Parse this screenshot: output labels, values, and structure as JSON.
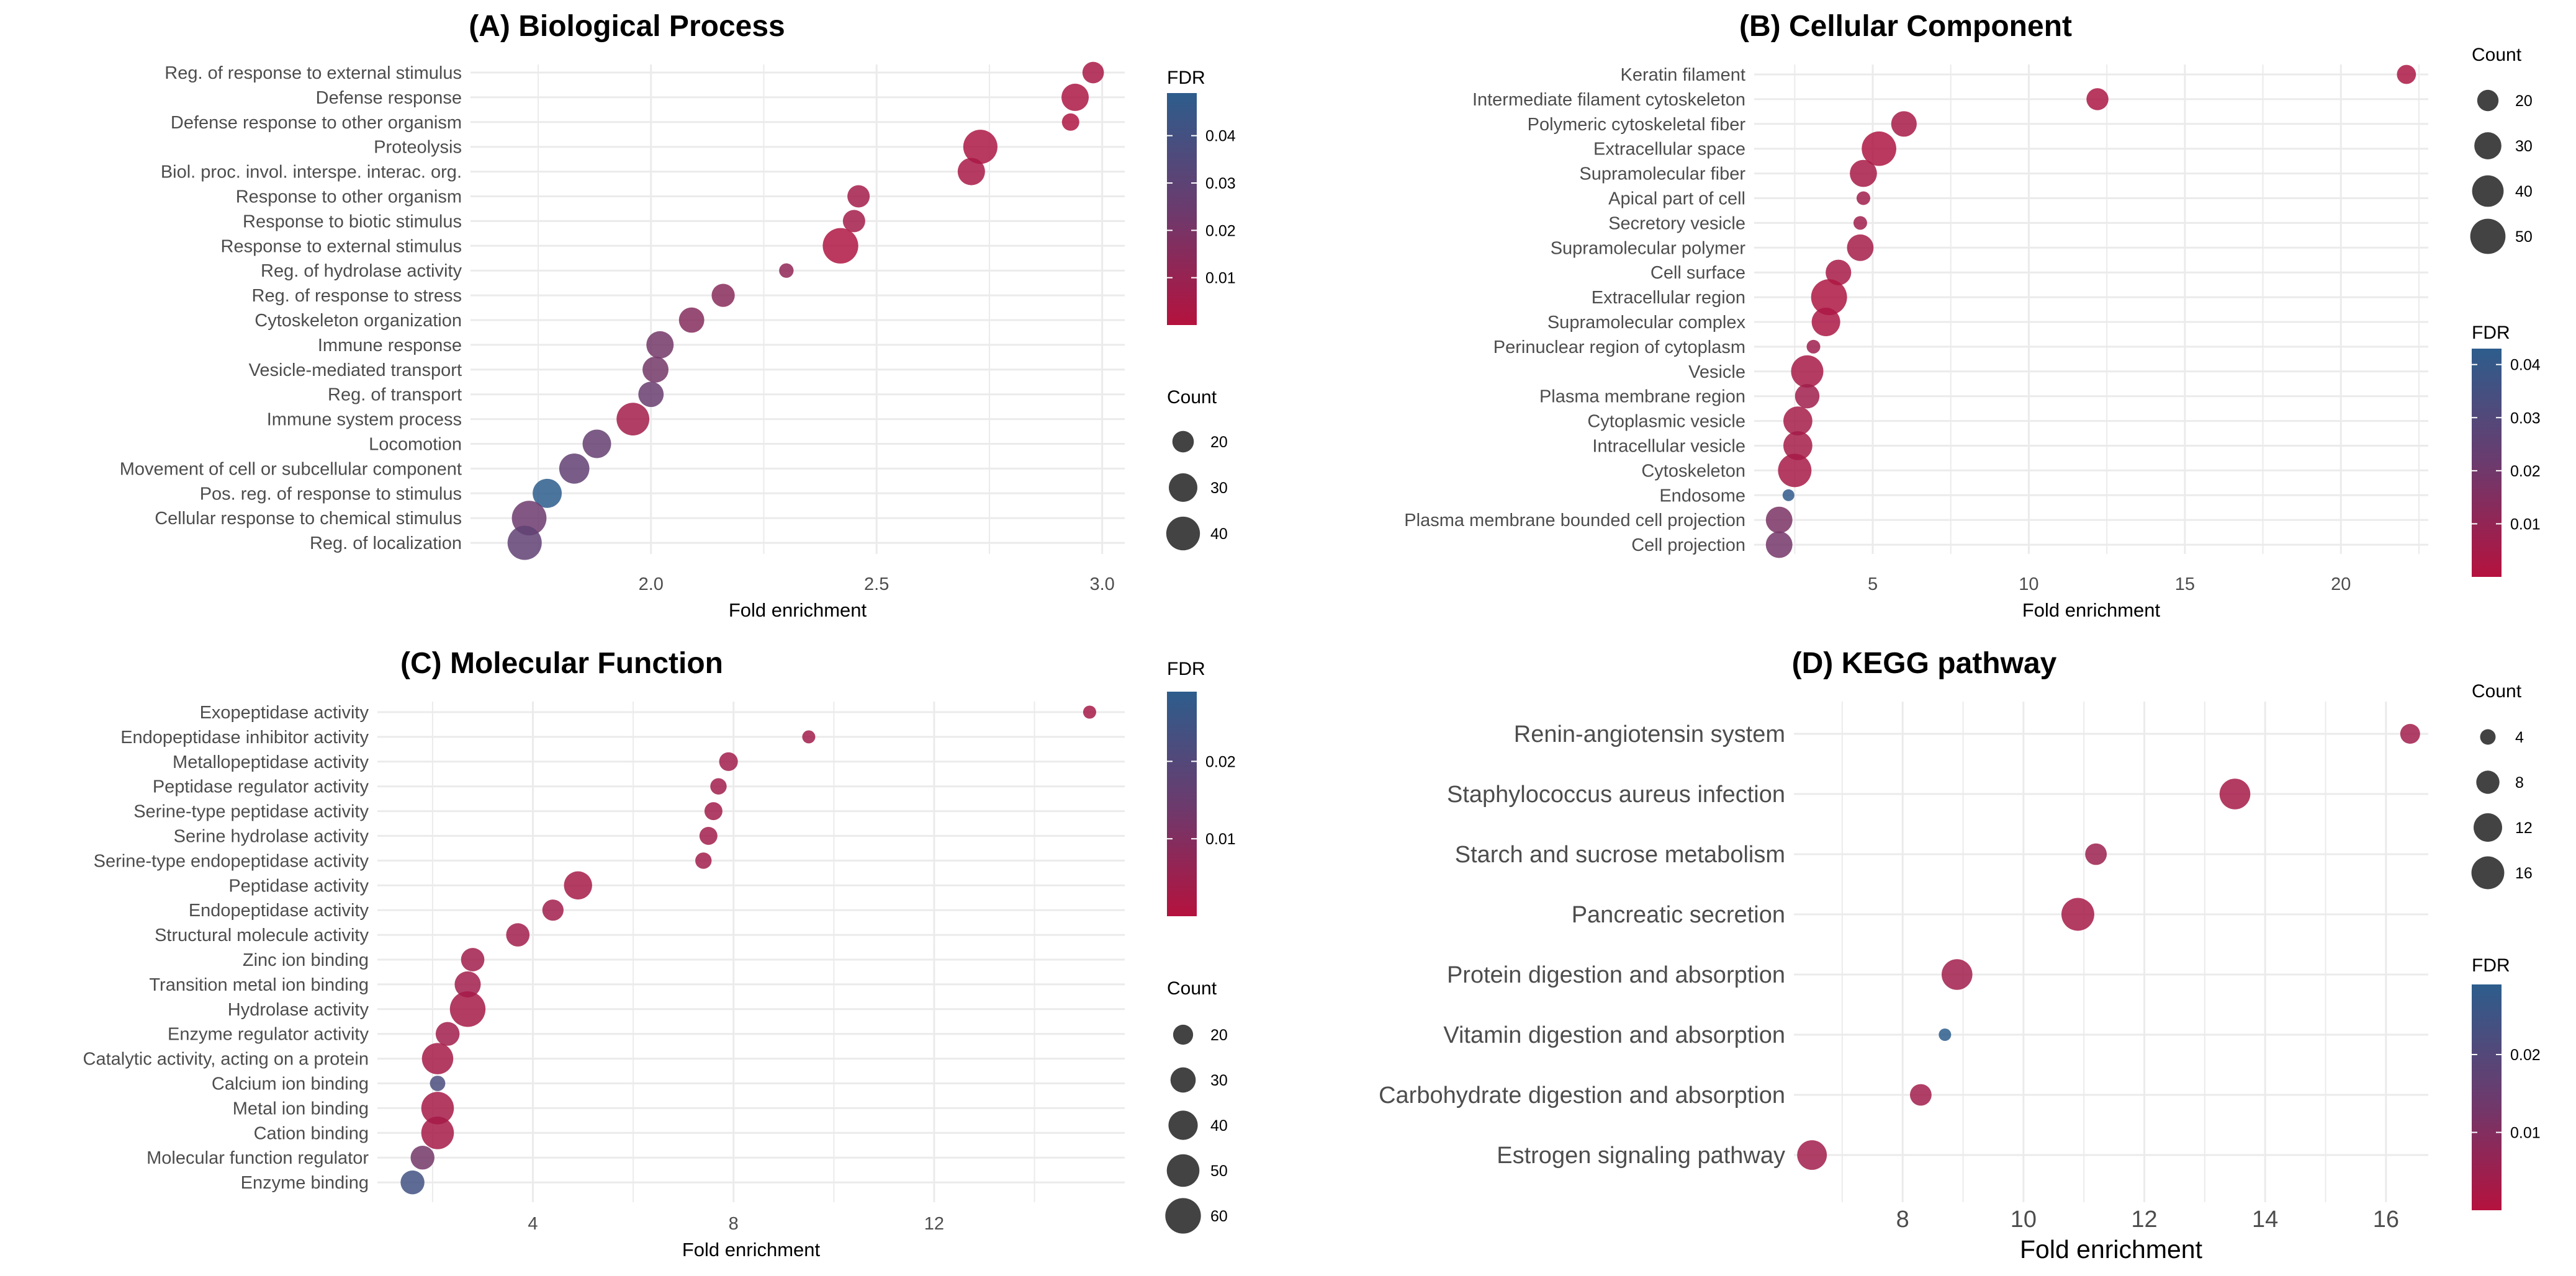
{
  "colors": {
    "fdr_low": "#b5123e",
    "fdr_mid": "#6b3b6e",
    "fdr_high": "#2d5d8c",
    "grid": "#ebebeb"
  },
  "chart_data": [
    {
      "type": "scatter",
      "title": "(A) Biological Process",
      "xlabel": "Fold enrichment",
      "xlim": [
        1.6,
        3.05
      ],
      "xticks": [
        2.0,
        2.5,
        3.0
      ],
      "xtick_labels": [
        "2.0",
        "2.5",
        "3.0"
      ],
      "fdr_range": [
        0.0,
        0.049
      ],
      "fdr_ticks": [
        0.01,
        0.02,
        0.03,
        0.04
      ],
      "fdr_tick_labels": [
        "0.01",
        "0.02",
        "0.03",
        "0.04"
      ],
      "count_range": [
        12,
        48
      ],
      "count_legend": [
        20,
        30,
        40
      ],
      "count_legend_labels": [
        "20",
        "30",
        "40"
      ],
      "fdr_legend_title": "FDR",
      "count_legend_title": "Count",
      "terms": [
        {
          "label": "Reg. of response to external stimulus",
          "x": 2.98,
          "count": 20,
          "fdr": 0.004
        },
        {
          "label": "Defense response",
          "x": 2.94,
          "count": 28,
          "fdr": 0.003
        },
        {
          "label": "Defense response to other organism",
          "x": 2.93,
          "count": 16,
          "fdr": 0.002
        },
        {
          "label": "Proteolysis",
          "x": 2.73,
          "count": 41,
          "fdr": 0.003
        },
        {
          "label": "Biol. proc. invol. interspe. interac. org.",
          "x": 2.71,
          "count": 28,
          "fdr": 0.004
        },
        {
          "label": "Response to other organism",
          "x": 2.46,
          "count": 21,
          "fdr": 0.006
        },
        {
          "label": "Response to biotic stimulus",
          "x": 2.45,
          "count": 21,
          "fdr": 0.006
        },
        {
          "label": "Response to external stimulus",
          "x": 2.42,
          "count": 44,
          "fdr": 0.002
        },
        {
          "label": "Reg. of hydrolase activity",
          "x": 2.3,
          "count": 14,
          "fdr": 0.012
        },
        {
          "label": "Reg. of response to stress",
          "x": 2.16,
          "count": 22,
          "fdr": 0.015
        },
        {
          "label": "Cytoskeleton organization",
          "x": 2.09,
          "count": 25,
          "fdr": 0.016
        },
        {
          "label": "Immune response",
          "x": 2.02,
          "count": 28,
          "fdr": 0.022
        },
        {
          "label": "Vesicle-mediated transport",
          "x": 2.01,
          "count": 26,
          "fdr": 0.022
        },
        {
          "label": "Reg. of transport",
          "x": 2.0,
          "count": 25,
          "fdr": 0.026
        },
        {
          "label": "Immune system process",
          "x": 1.96,
          "count": 38,
          "fdr": 0.006
        },
        {
          "label": "Locomotion",
          "x": 1.88,
          "count": 30,
          "fdr": 0.027
        },
        {
          "label": "Movement of cell or subcellular component",
          "x": 1.83,
          "count": 33,
          "fdr": 0.028
        },
        {
          "label": "Pos. reg. of response to stimulus",
          "x": 1.77,
          "count": 31,
          "fdr": 0.049
        },
        {
          "label": "Cellular response to chemical stimulus",
          "x": 1.73,
          "count": 42,
          "fdr": 0.024
        },
        {
          "label": "Reg. of localization",
          "x": 1.72,
          "count": 41,
          "fdr": 0.029
        }
      ]
    },
    {
      "type": "scatter",
      "title": "(B) Cellular Component",
      "xlabel": "Fold enrichment",
      "xlim": [
        1.2,
        22.8
      ],
      "xticks": [
        5,
        10,
        15,
        20
      ],
      "xtick_labels": [
        "5",
        "10",
        "15",
        "20"
      ],
      "fdr_range": [
        0.0,
        0.043
      ],
      "fdr_ticks": [
        0.01,
        0.02,
        0.03,
        0.04
      ],
      "fdr_tick_labels": [
        "0.01",
        "0.02",
        "0.03",
        "0.04"
      ],
      "count_range": [
        10,
        56
      ],
      "count_legend": [
        20,
        30,
        40,
        50
      ],
      "count_legend_labels": [
        "20",
        "30",
        "40",
        "50"
      ],
      "fdr_legend_title": "FDR",
      "count_legend_title": "Count",
      "terms": [
        {
          "label": "Keratin filament",
          "x": 22.1,
          "count": 17,
          "fdr": 0.003
        },
        {
          "label": "Intermediate filament cytoskeleton",
          "x": 12.2,
          "count": 21,
          "fdr": 0.003
        },
        {
          "label": "Polymeric cytoskeletal fiber",
          "x": 6.0,
          "count": 27,
          "fdr": 0.004
        },
        {
          "label": "Extracellular space",
          "x": 5.2,
          "count": 48,
          "fdr": 0.002
        },
        {
          "label": "Supramolecular fiber",
          "x": 4.7,
          "count": 30,
          "fdr": 0.004
        },
        {
          "label": "Apical part of cell",
          "x": 4.7,
          "count": 12,
          "fdr": 0.006
        },
        {
          "label": "Secretory vesicle",
          "x": 4.6,
          "count": 12,
          "fdr": 0.006
        },
        {
          "label": "Supramolecular polymer",
          "x": 4.6,
          "count": 29,
          "fdr": 0.005
        },
        {
          "label": "Cell surface",
          "x": 3.9,
          "count": 27,
          "fdr": 0.004
        },
        {
          "label": "Extracellular region",
          "x": 3.6,
          "count": 52,
          "fdr": 0.002
        },
        {
          "label": "Supramolecular complex",
          "x": 3.5,
          "count": 33,
          "fdr": 0.003
        },
        {
          "label": "Perinuclear region of cytoplasm",
          "x": 3.1,
          "count": 12,
          "fdr": 0.007
        },
        {
          "label": "Vesicle",
          "x": 2.9,
          "count": 42,
          "fdr": 0.004
        },
        {
          "label": "Plasma membrane region",
          "x": 2.9,
          "count": 25,
          "fdr": 0.006
        },
        {
          "label": "Cytoplasmic vesicle",
          "x": 2.6,
          "count": 34,
          "fdr": 0.005
        },
        {
          "label": "Intracellular vesicle",
          "x": 2.6,
          "count": 34,
          "fdr": 0.005
        },
        {
          "label": "Cytoskeleton",
          "x": 2.5,
          "count": 45,
          "fdr": 0.004
        },
        {
          "label": "Endosome",
          "x": 2.3,
          "count": 11,
          "fdr": 0.042
        },
        {
          "label": "Plasma membrane bounded cell projection",
          "x": 2.0,
          "count": 29,
          "fdr": 0.017
        },
        {
          "label": "Cell projection",
          "x": 2.0,
          "count": 29,
          "fdr": 0.019
        }
      ]
    },
    {
      "type": "scatter",
      "title": "(C) Molecular Function",
      "xlabel": "Fold enrichment",
      "xlim": [
        0.9,
        15.8
      ],
      "xticks": [
        4,
        8,
        12
      ],
      "xtick_labels": [
        "4",
        "8",
        "12"
      ],
      "fdr_range": [
        0.0,
        0.029
      ],
      "fdr_ticks": [
        0.01,
        0.02
      ],
      "fdr_tick_labels": [
        "0.01",
        "0.02"
      ],
      "count_range": [
        10,
        66
      ],
      "count_legend": [
        20,
        30,
        40,
        50,
        60
      ],
      "count_legend_labels": [
        "20",
        "30",
        "40",
        "50",
        "60"
      ],
      "fdr_legend_title": "FDR",
      "count_legend_title": "Count",
      "terms": [
        {
          "label": "Exopeptidase activity",
          "x": 15.1,
          "count": 12,
          "fdr": 0.003
        },
        {
          "label": "Endopeptidase inhibitor activity",
          "x": 9.5,
          "count": 12,
          "fdr": 0.004
        },
        {
          "label": "Metallopeptidase activity",
          "x": 7.9,
          "count": 18,
          "fdr": 0.004
        },
        {
          "label": "Peptidase regulator activity",
          "x": 7.7,
          "count": 15,
          "fdr": 0.004
        },
        {
          "label": "Serine-type peptidase activity",
          "x": 7.6,
          "count": 17,
          "fdr": 0.004
        },
        {
          "label": "Serine hydrolase activity",
          "x": 7.5,
          "count": 17,
          "fdr": 0.004
        },
        {
          "label": "Serine-type endopeptidase activity",
          "x": 7.4,
          "count": 15,
          "fdr": 0.004
        },
        {
          "label": "Peptidase activity",
          "x": 4.9,
          "count": 37,
          "fdr": 0.003
        },
        {
          "label": "Endopeptidase activity",
          "x": 4.4,
          "count": 22,
          "fdr": 0.004
        },
        {
          "label": "Structural molecule activity",
          "x": 3.7,
          "count": 26,
          "fdr": 0.004
        },
        {
          "label": "Zinc ion binding",
          "x": 2.8,
          "count": 26,
          "fdr": 0.004
        },
        {
          "label": "Transition metal ion binding",
          "x": 2.7,
          "count": 32,
          "fdr": 0.004
        },
        {
          "label": "Hydrolase activity",
          "x": 2.7,
          "count": 60,
          "fdr": 0.003
        },
        {
          "label": "Enzyme regulator activity",
          "x": 2.3,
          "count": 27,
          "fdr": 0.004
        },
        {
          "label": "Catalytic activity, acting on a protein",
          "x": 2.1,
          "count": 46,
          "fdr": 0.003
        },
        {
          "label": "Calcium ion binding",
          "x": 2.1,
          "count": 14,
          "fdr": 0.022
        },
        {
          "label": "Metal ion binding",
          "x": 2.1,
          "count": 50,
          "fdr": 0.003
        },
        {
          "label": "Cation binding",
          "x": 2.1,
          "count": 50,
          "fdr": 0.003
        },
        {
          "label": "Molecular function regulator",
          "x": 1.8,
          "count": 27,
          "fdr": 0.013
        },
        {
          "label": "Enzyme binding",
          "x": 1.6,
          "count": 27,
          "fdr": 0.024
        }
      ]
    },
    {
      "type": "scatter",
      "title": "(D) KEGG pathway",
      "xlabel": "Fold enrichment",
      "xlim": [
        6.2,
        16.7
      ],
      "xticks": [
        8,
        10,
        12,
        14,
        16
      ],
      "xtick_labels": [
        "8",
        "10",
        "12",
        "14",
        "16"
      ],
      "fdr_range": [
        0.0,
        0.029
      ],
      "fdr_ticks": [
        0.01,
        0.02
      ],
      "fdr_tick_labels": [
        "0.01",
        "0.02"
      ],
      "count_range": [
        2,
        18
      ],
      "count_legend": [
        4,
        8,
        12,
        16
      ],
      "count_legend_labels": [
        "4",
        "8",
        "12",
        "16"
      ],
      "fdr_legend_title": "FDR",
      "count_legend_title": "Count",
      "terms": [
        {
          "label": "Renin-angiotensin system",
          "x": 16.4,
          "count": 6,
          "fdr": 0.004
        },
        {
          "label": "Staphylococcus aureus infection",
          "x": 13.5,
          "count": 14,
          "fdr": 0.003
        },
        {
          "label": "Starch and sucrose metabolism",
          "x": 11.2,
          "count": 7,
          "fdr": 0.005
        },
        {
          "label": "Pancreatic secretion",
          "x": 10.9,
          "count": 16,
          "fdr": 0.003
        },
        {
          "label": "Protein digestion and absorption",
          "x": 8.9,
          "count": 14,
          "fdr": 0.004
        },
        {
          "label": "Vitamin digestion and absorption",
          "x": 8.7,
          "count": 3,
          "fdr": 0.029
        },
        {
          "label": "Carbohydrate digestion and absorption",
          "x": 8.3,
          "count": 7,
          "fdr": 0.004
        },
        {
          "label": "Estrogen signaling pathway",
          "x": 6.5,
          "count": 13,
          "fdr": 0.004
        }
      ]
    }
  ]
}
